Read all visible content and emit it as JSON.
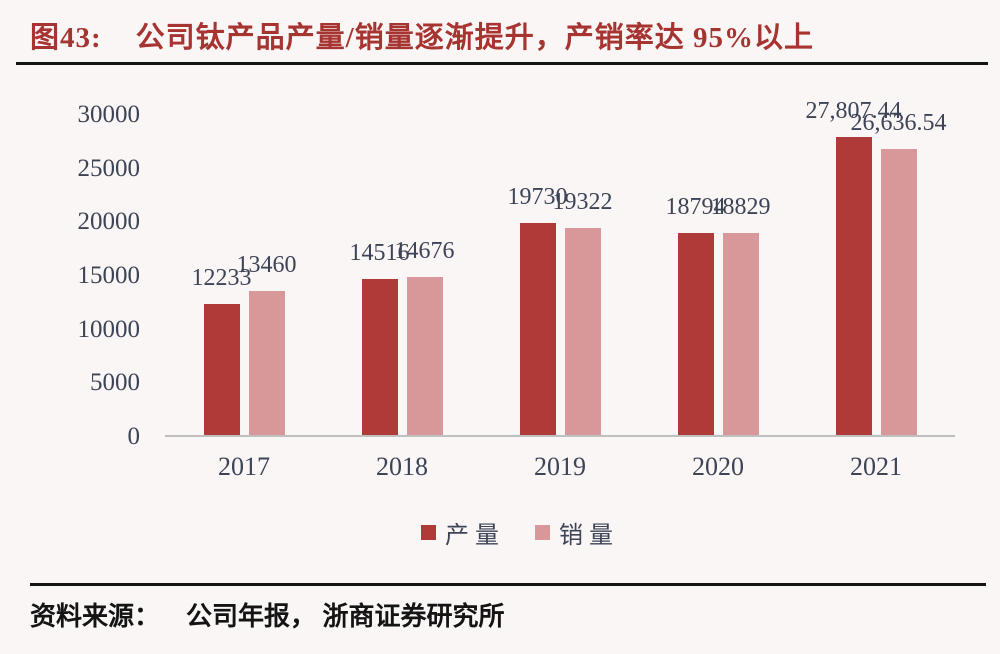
{
  "title": {
    "prefix": "图43:",
    "text": "公司钛产品产量/销量逐渐提升，产销率达 95%以上"
  },
  "source": {
    "label": "资料来源：",
    "text": "公司年报， 浙商证券研究所"
  },
  "colors": {
    "title_red": "#a63431",
    "production_bar": "#ae3b38",
    "sales_bar": "#d8989a",
    "axis_line": "#c1c0c0",
    "label_text": "#3d4456",
    "rule_black": "#141414",
    "background": "#f9f6f5"
  },
  "chart_data": {
    "type": "bar",
    "title": "公司钛产品产量/销量逐渐提升，产销率达 95%以上",
    "categories": [
      "2017",
      "2018",
      "2019",
      "2020",
      "2021"
    ],
    "series": [
      {
        "name": "产量",
        "color": "#ae3b38",
        "values": [
          12233,
          14516,
          19730,
          18794,
          27807.44
        ],
        "labels": [
          "12233",
          "14516",
          "19730",
          "18794",
          "27,807.44"
        ]
      },
      {
        "name": "销量",
        "color": "#d8989a",
        "values": [
          13460,
          14676,
          19322,
          18829,
          26636.54
        ],
        "labels": [
          "13460",
          "14676",
          "19322",
          "18829",
          "26,636.54"
        ]
      }
    ],
    "xlabel": "",
    "ylabel": "",
    "ylim": [
      0,
      30000
    ],
    "yticks": [
      0,
      5000,
      10000,
      15000,
      20000,
      25000,
      30000
    ],
    "ytick_labels": [
      "0",
      "5000",
      "10000",
      "15000",
      "20000",
      "25000",
      "30000"
    ],
    "grid": false,
    "legend_position": "bottom"
  }
}
